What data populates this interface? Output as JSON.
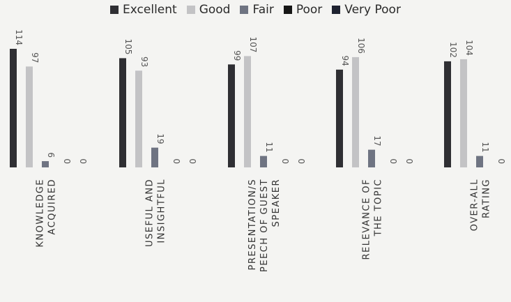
{
  "chart_data": {
    "type": "bar",
    "categories": [
      [
        "KNOWLEDGE",
        "ACQUIRED"
      ],
      [
        "USEFUL AND",
        "INSIGHTFUL"
      ],
      [
        "PRESENTATION/S",
        "PEECH OF GUEST",
        "SPEAKER"
      ],
      [
        "RELEVANCE OF",
        "THE TOPIC"
      ],
      [
        "OVER-ALL",
        "RATING"
      ]
    ],
    "series": [
      {
        "name": "Excellent",
        "color": "#2f2f33",
        "values": [
          114,
          105,
          99,
          94,
          102
        ]
      },
      {
        "name": "Good",
        "color": "#c3c3c5",
        "values": [
          97,
          93,
          107,
          106,
          104
        ]
      },
      {
        "name": "Fair",
        "color": "#6f7482",
        "values": [
          6,
          19,
          11,
          17,
          11
        ]
      },
      {
        "name": "Poor",
        "color": "#161616",
        "values": [
          0,
          0,
          0,
          0,
          0
        ]
      },
      {
        "name": "Very Poor",
        "color": "#1e2230",
        "values": [
          0,
          0,
          0,
          0,
          0
        ]
      }
    ],
    "ylim": [
      0,
      120
    ],
    "legend": "top",
    "grid": false
  }
}
